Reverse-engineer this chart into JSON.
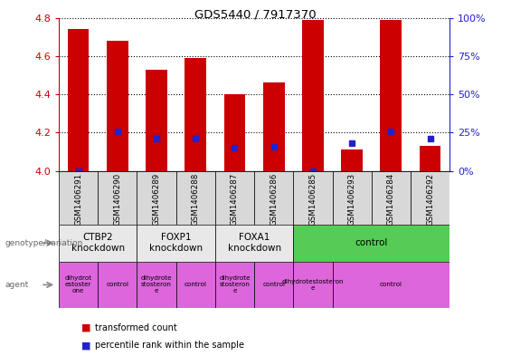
{
  "title": "GDS5440 / 7917370",
  "samples": [
    "GSM1406291",
    "GSM1406290",
    "GSM1406289",
    "GSM1406288",
    "GSM1406287",
    "GSM1406286",
    "GSM1406285",
    "GSM1406293",
    "GSM1406284",
    "GSM1406292"
  ],
  "transformed_count": [
    4.74,
    4.68,
    4.53,
    4.59,
    4.4,
    4.46,
    4.79,
    4.11,
    4.79,
    4.13
  ],
  "percentile_rank": [
    0,
    26,
    21,
    21,
    15,
    16,
    0,
    18,
    26,
    21
  ],
  "ylim_left": [
    4.0,
    4.8
  ],
  "ylim_right": [
    0,
    100
  ],
  "yticks_left": [
    4.0,
    4.2,
    4.4,
    4.6,
    4.8
  ],
  "yticks_right": [
    0,
    25,
    50,
    75,
    100
  ],
  "bar_color": "#cc0000",
  "dot_color": "#2222cc",
  "genotype_groups": [
    {
      "label": "CTBP2\nknockdown",
      "start": 0,
      "end": 2,
      "color": "#e8e8e8"
    },
    {
      "label": "FOXP1\nknockdown",
      "start": 2,
      "end": 4,
      "color": "#e8e8e8"
    },
    {
      "label": "FOXA1\nknockdown",
      "start": 4,
      "end": 6,
      "color": "#e8e8e8"
    },
    {
      "label": "control",
      "start": 6,
      "end": 10,
      "color": "#55cc55"
    }
  ],
  "agent_groups": [
    {
      "label": "dihydrot\nestoster\none",
      "start": 0,
      "end": 1
    },
    {
      "label": "control",
      "start": 1,
      "end": 2
    },
    {
      "label": "dihydrote\nstosteron\ne",
      "start": 2,
      "end": 3
    },
    {
      "label": "control",
      "start": 3,
      "end": 4
    },
    {
      "label": "dihydrote\nstosteron\ne",
      "start": 4,
      "end": 5
    },
    {
      "label": "control",
      "start": 5,
      "end": 6
    },
    {
      "label": "dihydrotestosteron\ne",
      "start": 6,
      "end": 7
    },
    {
      "label": "control",
      "start": 7,
      "end": 10
    }
  ],
  "agent_color": "#dd66dd",
  "left_label_color": "#cc0000",
  "right_label_color": "#2222cc",
  "sample_box_color": "#d8d8d8",
  "fig_width": 5.65,
  "fig_height": 3.93,
  "dpi": 100
}
